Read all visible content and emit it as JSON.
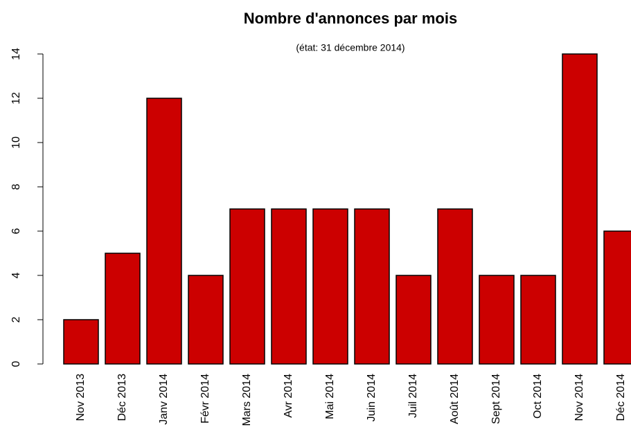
{
  "chart_data": {
    "type": "bar",
    "title": "Nombre d'annonces par mois",
    "subtitle": "(état: 31 décembre 2014)",
    "categories": [
      "Nov 2013",
      "Déc 2013",
      "Janv 2014",
      "Févr 2014",
      "Mars 2014",
      "Avr 2014",
      "Mai 2014",
      "Juin 2014",
      "Juil 2014",
      "Août 2014",
      "Sept 2014",
      "Oct 2014",
      "Nov 2014",
      "Déc 2014"
    ],
    "values": [
      2,
      5,
      12,
      4,
      7,
      7,
      7,
      7,
      4,
      7,
      4,
      4,
      14,
      6
    ],
    "color": "#cc0000",
    "ylim": [
      0,
      14
    ],
    "yticks": [
      0,
      2,
      4,
      6,
      8,
      10,
      12,
      14
    ],
    "grid": false
  }
}
